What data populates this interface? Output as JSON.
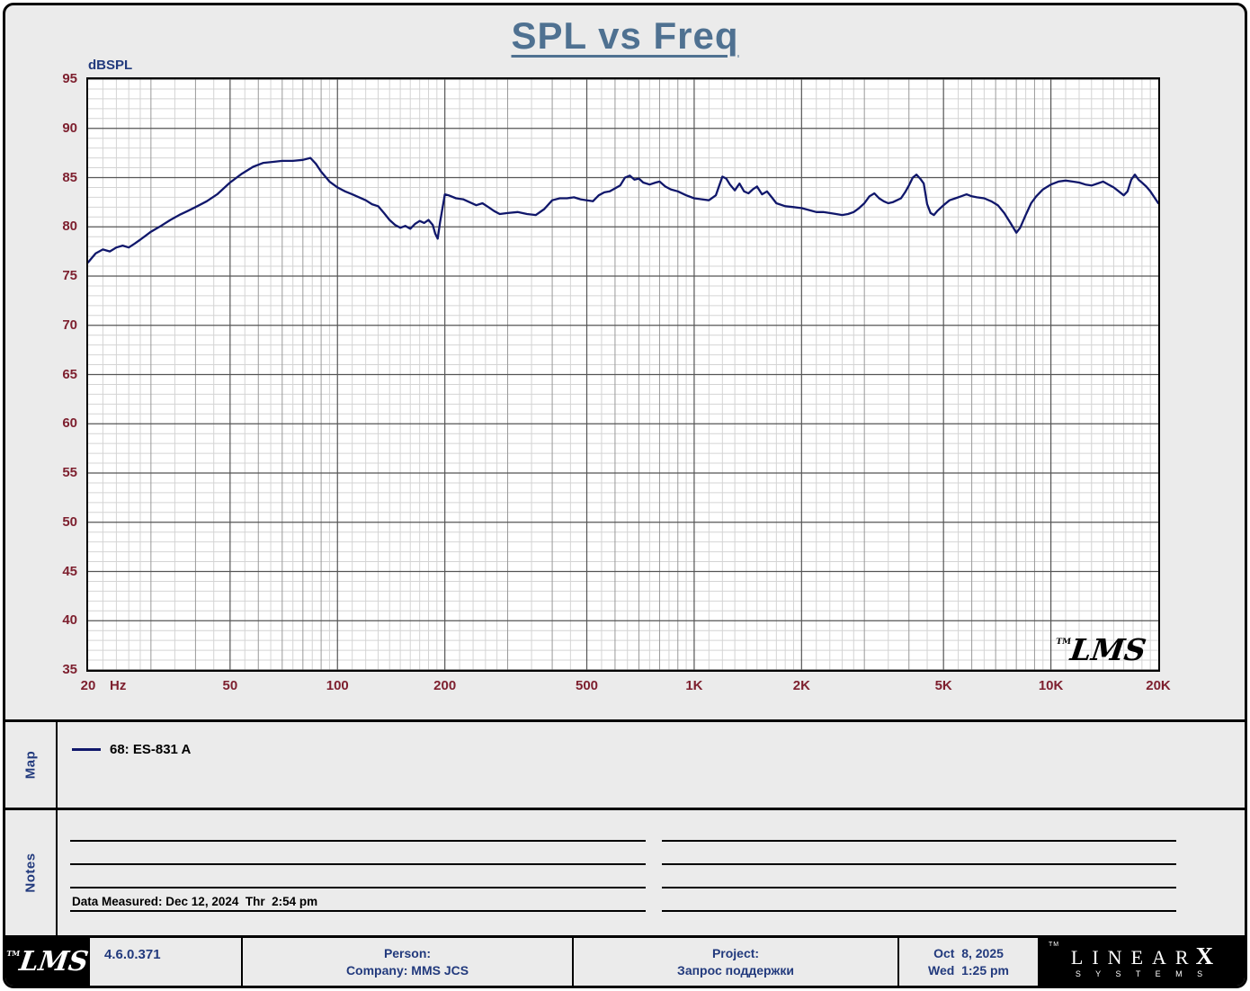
{
  "watermark": "LMS",
  "colors": {
    "page_bg": "#ebebeb",
    "plot_bg": "#ffffff",
    "title": "#4f7191",
    "tick_labels": "#7d1f2e",
    "navy_text": "#223a7d",
    "curve": "#10176b",
    "grid_fine": "#d4d4d4",
    "grid_med": "#9a9a9a",
    "grid_major": "#555555"
  },
  "chart_data": {
    "type": "line",
    "title": "SPL vs Freq",
    "ylabel": "dBSPL",
    "xlabel": "Hz",
    "xscale": "log",
    "xlim": [
      20,
      20000
    ],
    "ylim": [
      35,
      95
    ],
    "grid": true,
    "legend_position": "map-panel-below-chart",
    "y_ticks": [
      {
        "v": 95,
        "label": "95"
      },
      {
        "v": 90,
        "label": "90"
      },
      {
        "v": 85,
        "label": "85"
      },
      {
        "v": 80,
        "label": "80"
      },
      {
        "v": 75,
        "label": "75"
      },
      {
        "v": 70,
        "label": "70"
      },
      {
        "v": 65,
        "label": "65"
      },
      {
        "v": 60,
        "label": "60"
      },
      {
        "v": 55,
        "label": "55"
      },
      {
        "v": 50,
        "label": "50"
      },
      {
        "v": 45,
        "label": "45"
      },
      {
        "v": 40,
        "label": "40"
      },
      {
        "v": 35,
        "label": "35"
      }
    ],
    "x_ticks": [
      {
        "f": 20,
        "label": "20"
      },
      {
        "f": 50,
        "label": "50"
      },
      {
        "f": 100,
        "label": "100"
      },
      {
        "f": 200,
        "label": "200"
      },
      {
        "f": 500,
        "label": "500"
      },
      {
        "f": 1000,
        "label": "1K"
      },
      {
        "f": 2000,
        "label": "2K"
      },
      {
        "f": 5000,
        "label": "5K"
      },
      {
        "f": 10000,
        "label": "10K"
      },
      {
        "f": 20000,
        "label": "20K"
      }
    ],
    "series": [
      {
        "name": "68: ES-831 A",
        "color": "#10176b",
        "points": [
          [
            20,
            76.4
          ],
          [
            21,
            77.3
          ],
          [
            22,
            77.7
          ],
          [
            23,
            77.5
          ],
          [
            24,
            77.9
          ],
          [
            25,
            78.1
          ],
          [
            26,
            77.9
          ],
          [
            27,
            78.3
          ],
          [
            28,
            78.7
          ],
          [
            29,
            79.1
          ],
          [
            30,
            79.5
          ],
          [
            32,
            80.1
          ],
          [
            34,
            80.7
          ],
          [
            36,
            81.2
          ],
          [
            38,
            81.6
          ],
          [
            40,
            82.0
          ],
          [
            43,
            82.6
          ],
          [
            46,
            83.3
          ],
          [
            50,
            84.5
          ],
          [
            54,
            85.4
          ],
          [
            58,
            86.1
          ],
          [
            62,
            86.5
          ],
          [
            66,
            86.6
          ],
          [
            70,
            86.7
          ],
          [
            75,
            86.7
          ],
          [
            80,
            86.8
          ],
          [
            84,
            87.0
          ],
          [
            87,
            86.4
          ],
          [
            90,
            85.6
          ],
          [
            95,
            84.6
          ],
          [
            100,
            84.0
          ],
          [
            105,
            83.6
          ],
          [
            110,
            83.3
          ],
          [
            115,
            83.0
          ],
          [
            120,
            82.7
          ],
          [
            125,
            82.3
          ],
          [
            130,
            82.1
          ],
          [
            135,
            81.4
          ],
          [
            140,
            80.7
          ],
          [
            145,
            80.2
          ],
          [
            150,
            79.9
          ],
          [
            155,
            80.1
          ],
          [
            160,
            79.8
          ],
          [
            165,
            80.3
          ],
          [
            170,
            80.6
          ],
          [
            175,
            80.4
          ],
          [
            180,
            80.7
          ],
          [
            185,
            80.2
          ],
          [
            188,
            79.3
          ],
          [
            191,
            78.8
          ],
          [
            194,
            80.5
          ],
          [
            200,
            83.3
          ],
          [
            205,
            83.2
          ],
          [
            215,
            82.9
          ],
          [
            225,
            82.8
          ],
          [
            235,
            82.5
          ],
          [
            245,
            82.2
          ],
          [
            255,
            82.4
          ],
          [
            265,
            82.0
          ],
          [
            275,
            81.6
          ],
          [
            285,
            81.3
          ],
          [
            300,
            81.4
          ],
          [
            320,
            81.5
          ],
          [
            340,
            81.3
          ],
          [
            360,
            81.2
          ],
          [
            380,
            81.8
          ],
          [
            400,
            82.7
          ],
          [
            420,
            82.9
          ],
          [
            440,
            82.9
          ],
          [
            460,
            83.0
          ],
          [
            480,
            82.8
          ],
          [
            500,
            82.7
          ],
          [
            520,
            82.6
          ],
          [
            540,
            83.2
          ],
          [
            560,
            83.5
          ],
          [
            580,
            83.6
          ],
          [
            600,
            83.9
          ],
          [
            620,
            84.2
          ],
          [
            640,
            85.0
          ],
          [
            660,
            85.2
          ],
          [
            680,
            84.8
          ],
          [
            700,
            84.9
          ],
          [
            720,
            84.5
          ],
          [
            750,
            84.3
          ],
          [
            780,
            84.5
          ],
          [
            800,
            84.6
          ],
          [
            830,
            84.1
          ],
          [
            860,
            83.8
          ],
          [
            900,
            83.6
          ],
          [
            950,
            83.2
          ],
          [
            1000,
            82.9
          ],
          [
            1050,
            82.8
          ],
          [
            1100,
            82.7
          ],
          [
            1150,
            83.2
          ],
          [
            1200,
            85.1
          ],
          [
            1230,
            84.9
          ],
          [
            1260,
            84.3
          ],
          [
            1300,
            83.7
          ],
          [
            1340,
            84.4
          ],
          [
            1380,
            83.6
          ],
          [
            1420,
            83.4
          ],
          [
            1460,
            83.8
          ],
          [
            1500,
            84.1
          ],
          [
            1550,
            83.3
          ],
          [
            1600,
            83.6
          ],
          [
            1650,
            83.0
          ],
          [
            1700,
            82.4
          ],
          [
            1800,
            82.1
          ],
          [
            1900,
            82.0
          ],
          [
            2000,
            81.9
          ],
          [
            2100,
            81.7
          ],
          [
            2200,
            81.5
          ],
          [
            2300,
            81.5
          ],
          [
            2400,
            81.4
          ],
          [
            2500,
            81.3
          ],
          [
            2600,
            81.2
          ],
          [
            2700,
            81.3
          ],
          [
            2800,
            81.5
          ],
          [
            2900,
            81.9
          ],
          [
            3000,
            82.4
          ],
          [
            3100,
            83.1
          ],
          [
            3200,
            83.4
          ],
          [
            3300,
            82.9
          ],
          [
            3400,
            82.6
          ],
          [
            3500,
            82.4
          ],
          [
            3600,
            82.5
          ],
          [
            3700,
            82.7
          ],
          [
            3800,
            82.9
          ],
          [
            3900,
            83.5
          ],
          [
            4000,
            84.2
          ],
          [
            4100,
            85.0
          ],
          [
            4200,
            85.3
          ],
          [
            4300,
            84.9
          ],
          [
            4400,
            84.4
          ],
          [
            4500,
            82.3
          ],
          [
            4600,
            81.4
          ],
          [
            4700,
            81.2
          ],
          [
            4800,
            81.6
          ],
          [
            4900,
            81.9
          ],
          [
            5000,
            82.2
          ],
          [
            5200,
            82.7
          ],
          [
            5400,
            82.9
          ],
          [
            5600,
            83.1
          ],
          [
            5800,
            83.3
          ],
          [
            6000,
            83.1
          ],
          [
            6200,
            83.0
          ],
          [
            6500,
            82.9
          ],
          [
            6800,
            82.6
          ],
          [
            7100,
            82.2
          ],
          [
            7400,
            81.4
          ],
          [
            7700,
            80.4
          ],
          [
            8000,
            79.4
          ],
          [
            8200,
            79.9
          ],
          [
            8500,
            81.2
          ],
          [
            8800,
            82.4
          ],
          [
            9100,
            83.1
          ],
          [
            9500,
            83.8
          ],
          [
            10000,
            84.3
          ],
          [
            10500,
            84.6
          ],
          [
            11000,
            84.7
          ],
          [
            11500,
            84.6
          ],
          [
            12000,
            84.5
          ],
          [
            12500,
            84.3
          ],
          [
            13000,
            84.2
          ],
          [
            13500,
            84.4
          ],
          [
            14000,
            84.6
          ],
          [
            14500,
            84.3
          ],
          [
            15000,
            84.0
          ],
          [
            15500,
            83.6
          ],
          [
            16000,
            83.2
          ],
          [
            16400,
            83.6
          ],
          [
            16800,
            84.8
          ],
          [
            17200,
            85.3
          ],
          [
            17600,
            84.8
          ],
          [
            18000,
            84.5
          ],
          [
            18500,
            84.1
          ],
          [
            19000,
            83.6
          ],
          [
            19500,
            83.0
          ],
          [
            20000,
            82.4
          ]
        ]
      }
    ]
  },
  "map": {
    "label": "Map",
    "legend": [
      {
        "name": "68: ES-831 A"
      }
    ]
  },
  "notes": {
    "label": "Notes",
    "data_measured": "Data Measured: Dec 12, 2024  Thr  2:54 pm"
  },
  "footer": {
    "tm": "TM",
    "logo": "LMS",
    "version": "4.6.0.371",
    "person_label": "Person:",
    "company": "Company: MMS JCS",
    "project_label": "Project:",
    "project_value": "Запрос поддержки",
    "date": "Oct  8, 2025",
    "time": "Wed  1:25 pm",
    "brand_main": "LINEAR",
    "brand_x": "X",
    "brand_sub": "S Y S T E M S"
  }
}
